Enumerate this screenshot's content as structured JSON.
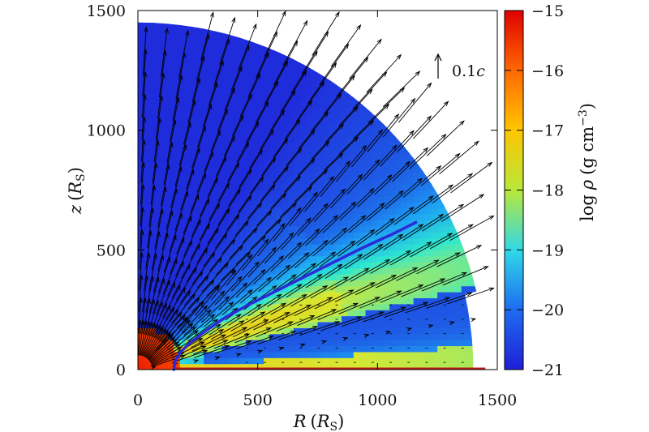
{
  "chart_data": {
    "type": "heatmap",
    "title": "",
    "xlabel": {
      "main": "R",
      "open": "(",
      "var": "R",
      "sub": "S",
      "close": ")"
    },
    "ylabel": {
      "main": "z",
      "open": "(",
      "var": "R",
      "sub": "S",
      "close": ")"
    },
    "xlim": [
      0,
      1500
    ],
    "ylim": [
      0,
      1500
    ],
    "xticks": [
      0,
      500,
      1000,
      1500
    ],
    "yticks": [
      0,
      500,
      1000,
      1500
    ],
    "x_tick_labels": [
      "0",
      "500",
      "1000",
      "1500"
    ],
    "y_tick_labels": [
      "0",
      "500",
      "1000",
      "1500"
    ],
    "colorbar": {
      "label": {
        "pre": "log",
        "sym": "ρ",
        "unit": "(g cm",
        "exp": "−3",
        "close": ")"
      },
      "range": [
        -21,
        -15
      ],
      "ticks": [
        -15,
        -16,
        -17,
        -18,
        -19,
        -20,
        -21
      ],
      "tick_labels": [
        "−15",
        "−16",
        "−17",
        "−18",
        "−19",
        "−20",
        "−21"
      ],
      "colormap": [
        "#1f1fd8",
        "#1ea0f5",
        "#2fe8d0",
        "#d6e832",
        "#ffb000",
        "#ff5000",
        "#e00000"
      ]
    },
    "domain": {
      "outer_radius": 1450,
      "lower_cut_radius": 1400,
      "lower_cut_angle_deg": 13
    },
    "vector_key": {
      "label_num": "0.1",
      "label_var": "c"
    },
    "streamline": {
      "color": "#2a2ad8",
      "x": [
        150,
        155,
        175,
        215,
        280,
        360,
        460,
        580,
        700,
        820,
        940,
        1060,
        1160
      ],
      "z": [
        0,
        35,
        70,
        110,
        160,
        215,
        270,
        330,
        390,
        450,
        510,
        565,
        615
      ]
    },
    "midplane_line": {
      "color": "#c01818",
      "x": [
        150,
        1450
      ],
      "z": [
        0,
        0
      ]
    }
  }
}
